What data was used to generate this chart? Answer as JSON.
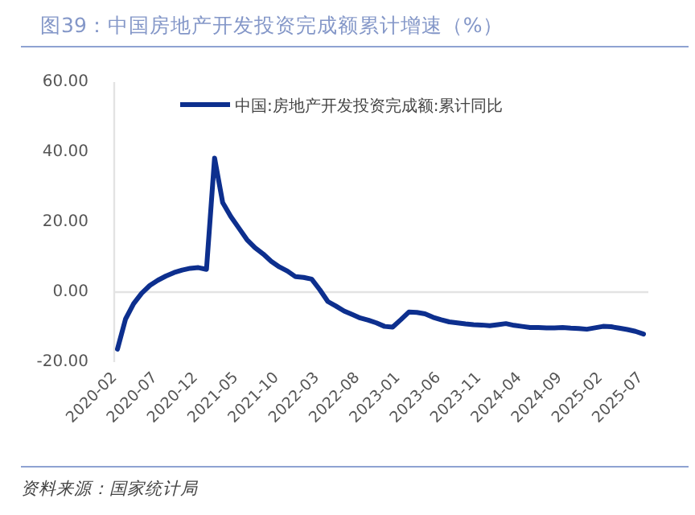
{
  "chart_data": {
    "type": "line",
    "title": "图39：中国房地产开发投资完成额累计增速（%）",
    "categories": [
      "2020-02",
      null,
      null,
      null,
      null,
      "2020-07",
      null,
      null,
      null,
      null,
      "2020-12",
      null,
      null,
      null,
      null,
      "2021-05",
      null,
      null,
      null,
      null,
      "2021-10",
      null,
      null,
      null,
      null,
      "2022-03",
      null,
      null,
      null,
      null,
      "2022-08",
      null,
      null,
      null,
      null,
      "2023-01",
      null,
      null,
      null,
      null,
      "2023-06",
      null,
      null,
      null,
      null,
      "2023-11",
      null,
      null,
      null,
      null,
      "2024-04",
      null,
      null,
      null,
      null,
      "2024-09",
      null,
      null,
      null,
      null,
      "2025-02",
      null,
      null,
      null,
      null,
      "2025-07"
    ],
    "series": [
      {
        "name": "中国:房地产开发投资完成额:累计同比",
        "color": "#0d2f8e",
        "values": [
          -16.3,
          -7.7,
          -3.3,
          -0.3,
          1.9,
          3.4,
          4.6,
          5.6,
          6.3,
          6.8,
          7.0,
          6.5,
          38.3,
          25.6,
          21.6,
          18.3,
          15.0,
          12.7,
          10.9,
          8.8,
          7.2,
          6.0,
          4.4,
          4.2,
          3.7,
          0.7,
          -2.7,
          -4.0,
          -5.4,
          -6.4,
          -7.4,
          -8.0,
          -8.8,
          -9.8,
          -10.0,
          -7.9,
          -5.7,
          -5.8,
          -6.2,
          -7.2,
          -7.9,
          -8.5,
          -8.8,
          -9.1,
          -9.3,
          -9.4,
          -9.6,
          -9.3,
          -9.0,
          -9.5,
          -9.8,
          -10.1,
          -10.1,
          -10.2,
          -10.2,
          -10.1,
          -10.3,
          -10.4,
          -10.6,
          -10.2,
          -9.8,
          -9.9,
          -10.3,
          -10.7,
          -11.2,
          -12.0
        ]
      }
    ],
    "ylim": [
      -20,
      60
    ],
    "yticks": [
      {
        "value": -20,
        "label": "-20.00"
      },
      {
        "value": 0,
        "label": "0.00"
      },
      {
        "value": 20,
        "label": "20.00"
      },
      {
        "value": 40,
        "label": "40.00"
      },
      {
        "value": 60,
        "label": "60.00"
      }
    ],
    "ref_lines": [
      {
        "axis": "y",
        "value": 0,
        "color": "#e3e3e3"
      }
    ],
    "legend": "top",
    "grid": false,
    "marker": "none",
    "line_style": "solid",
    "annotations": [
      "资料来源：国家统计局"
    ]
  }
}
